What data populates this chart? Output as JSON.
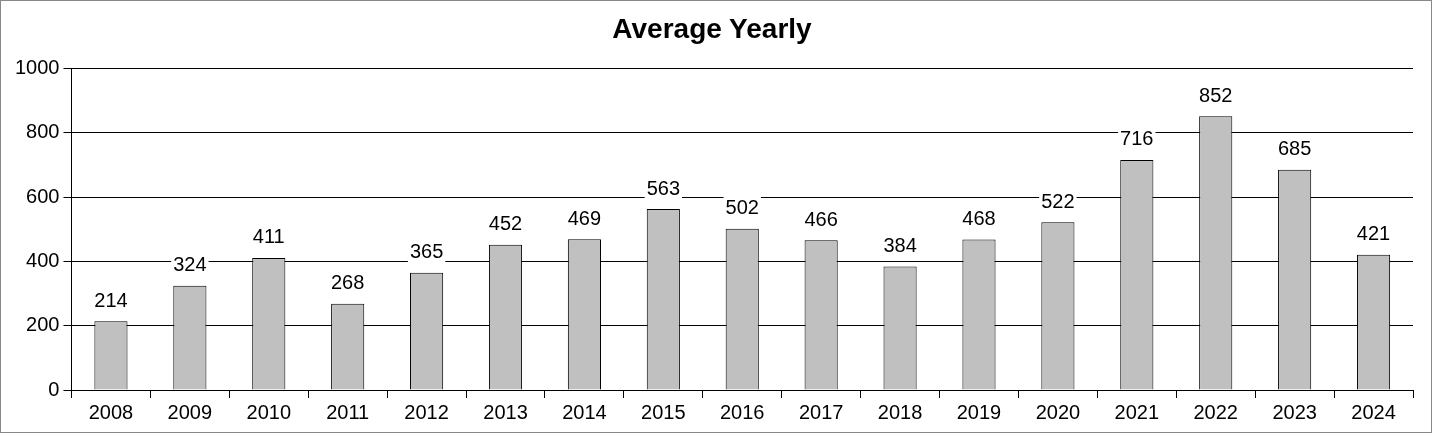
{
  "chart_data": {
    "type": "bar",
    "title": "Average Yearly",
    "categories": [
      "2008",
      "2009",
      "2010",
      "2011",
      "2012",
      "2013",
      "2014",
      "2015",
      "2016",
      "2017",
      "2018",
      "2019",
      "2020",
      "2021",
      "2022",
      "2023",
      "2024"
    ],
    "values": [
      214,
      324,
      411,
      268,
      365,
      452,
      469,
      563,
      502,
      466,
      384,
      468,
      522,
      716,
      852,
      685,
      421
    ],
    "color": "#c0c0c0",
    "ylim": [
      0,
      1000
    ],
    "yticks": [
      0,
      200,
      400,
      600,
      800,
      1000
    ],
    "grid": "y",
    "data_labels": true
  }
}
